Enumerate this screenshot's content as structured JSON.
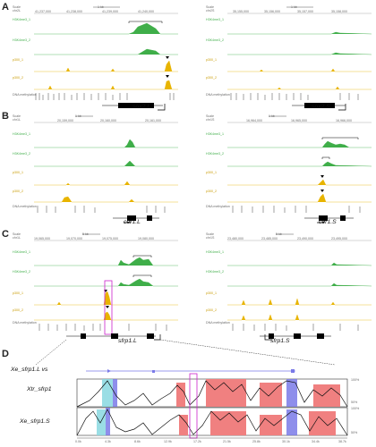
{
  "panels": {
    "A": {
      "letter": "A",
      "left": {
        "scale": "Scale",
        "chr": "chr2L",
        "ticks": [
          "41,237,000",
          "41,238,000",
          "41,239,000",
          "41,240,000"
        ],
        "scalebar": "1 kb",
        "gene": "sox2.L"
      },
      "right": {
        "scale": "Scale",
        "chr": "chr2S",
        "ticks": [
          "35,155,000",
          "35,156,000",
          "35,157,000",
          "35,158,000"
        ],
        "scalebar": "1 kb",
        "gene": "sox2.S"
      }
    },
    "B": {
      "letter": "B",
      "left": {
        "scale": "Scale",
        "chr": "chr1L",
        "ticks": [
          "20,159,000",
          "20,160,000",
          "20,161,000"
        ],
        "scalebar": "1 kb",
        "gene": "cer1.L"
      },
      "right": {
        "scale": "Scale",
        "chr": "chr1S",
        "ticks": [
          "16,964,000",
          "16,965,000",
          "16,966,000"
        ],
        "scalebar": "1 kb",
        "gene": "cer1.S"
      }
    },
    "C": {
      "letter": "C",
      "left": {
        "scale": "Scale",
        "chr": "chr1L",
        "ticks": [
          "19,065,000",
          "19,070,000",
          "19,075,000",
          "19,080,000"
        ],
        "scalebar": "5 kb",
        "gene": "sfrp1.L"
      },
      "right": {
        "scale": "Scale",
        "chr": "chr1S",
        "ticks": [
          "23,480,000",
          "23,485,000",
          "23,490,000",
          "23,495,000"
        ],
        "scalebar": "5 kb",
        "gene": "sfrp1.S"
      }
    },
    "D": {
      "letter": "D",
      "ref_label": "Xe_sfrp1.L vs",
      "track1": "Xtr_sfrp1",
      "track2": "Xe_sfrp1.S",
      "pct_top": "100%",
      "pct_bottom": "50%",
      "axis": [
        "0.0k",
        "4.3k",
        "8.6k",
        "12.9k",
        "17.2k",
        "21.5k",
        "25.8k",
        "30.1k",
        "34.4k",
        "38.7k"
      ]
    }
  },
  "track_labels": [
    "H3K4me3_1",
    "H3K4me3_2",
    "p300_1",
    "p300_2",
    "DNA methylation"
  ],
  "colors": {
    "h3k4": "#3fae49",
    "p300": "#e8b400",
    "meth": "#888888",
    "magenta": "#cc22cc",
    "exon": "#7a7ae8",
    "utr": "#88d8e0",
    "cns": "#f08080"
  }
}
